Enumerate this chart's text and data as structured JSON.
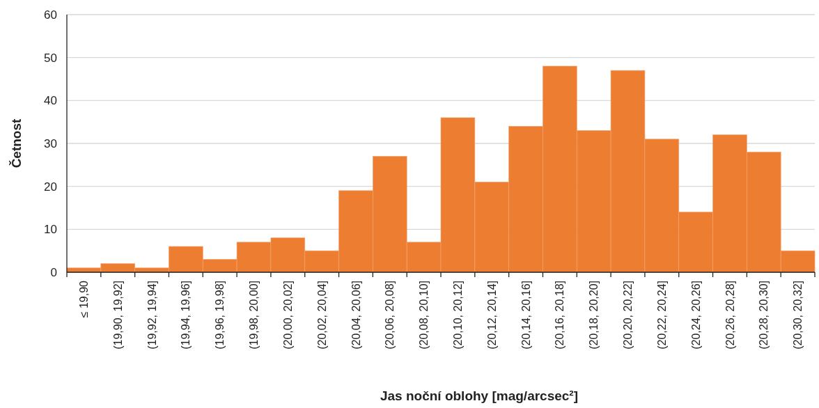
{
  "chart_data": {
    "type": "bar",
    "xlabel": "Jas noční oblohy [mag/arcsec²]",
    "ylabel": "Četnost",
    "categories": [
      "≤ 19,90",
      "(19,90, 19,92]",
      "(19,92, 19,94]",
      "(19,94, 19,96]",
      "(19,96, 19,98]",
      "(19,98, 20,00]",
      "(20,00, 20,02]",
      "(20,02, 20,04]",
      "(20,04, 20,06]",
      "(20,06, 20,08]",
      "(20,08, 20,10]",
      "(20,10, 20,12]",
      "(20,12, 20,14]",
      "(20,14, 20,16]",
      "(20,16, 20,18]",
      "(20,18, 20,20]",
      "(20,20, 20,22]",
      "(20,22, 20,24]",
      "(20,24, 20,26]",
      "(20,26, 20,28]",
      "(20,28, 20,30]",
      "(20,30, 20,32]"
    ],
    "values": [
      1,
      2,
      1,
      6,
      3,
      7,
      8,
      5,
      19,
      27,
      7,
      36,
      21,
      34,
      48,
      33,
      47,
      31,
      14,
      32,
      28,
      5
    ],
    "color": "#ed7d31",
    "ylim": [
      0,
      60
    ],
    "yticks": [
      0,
      10,
      20,
      30,
      40,
      50,
      60
    ],
    "grid": "y"
  }
}
